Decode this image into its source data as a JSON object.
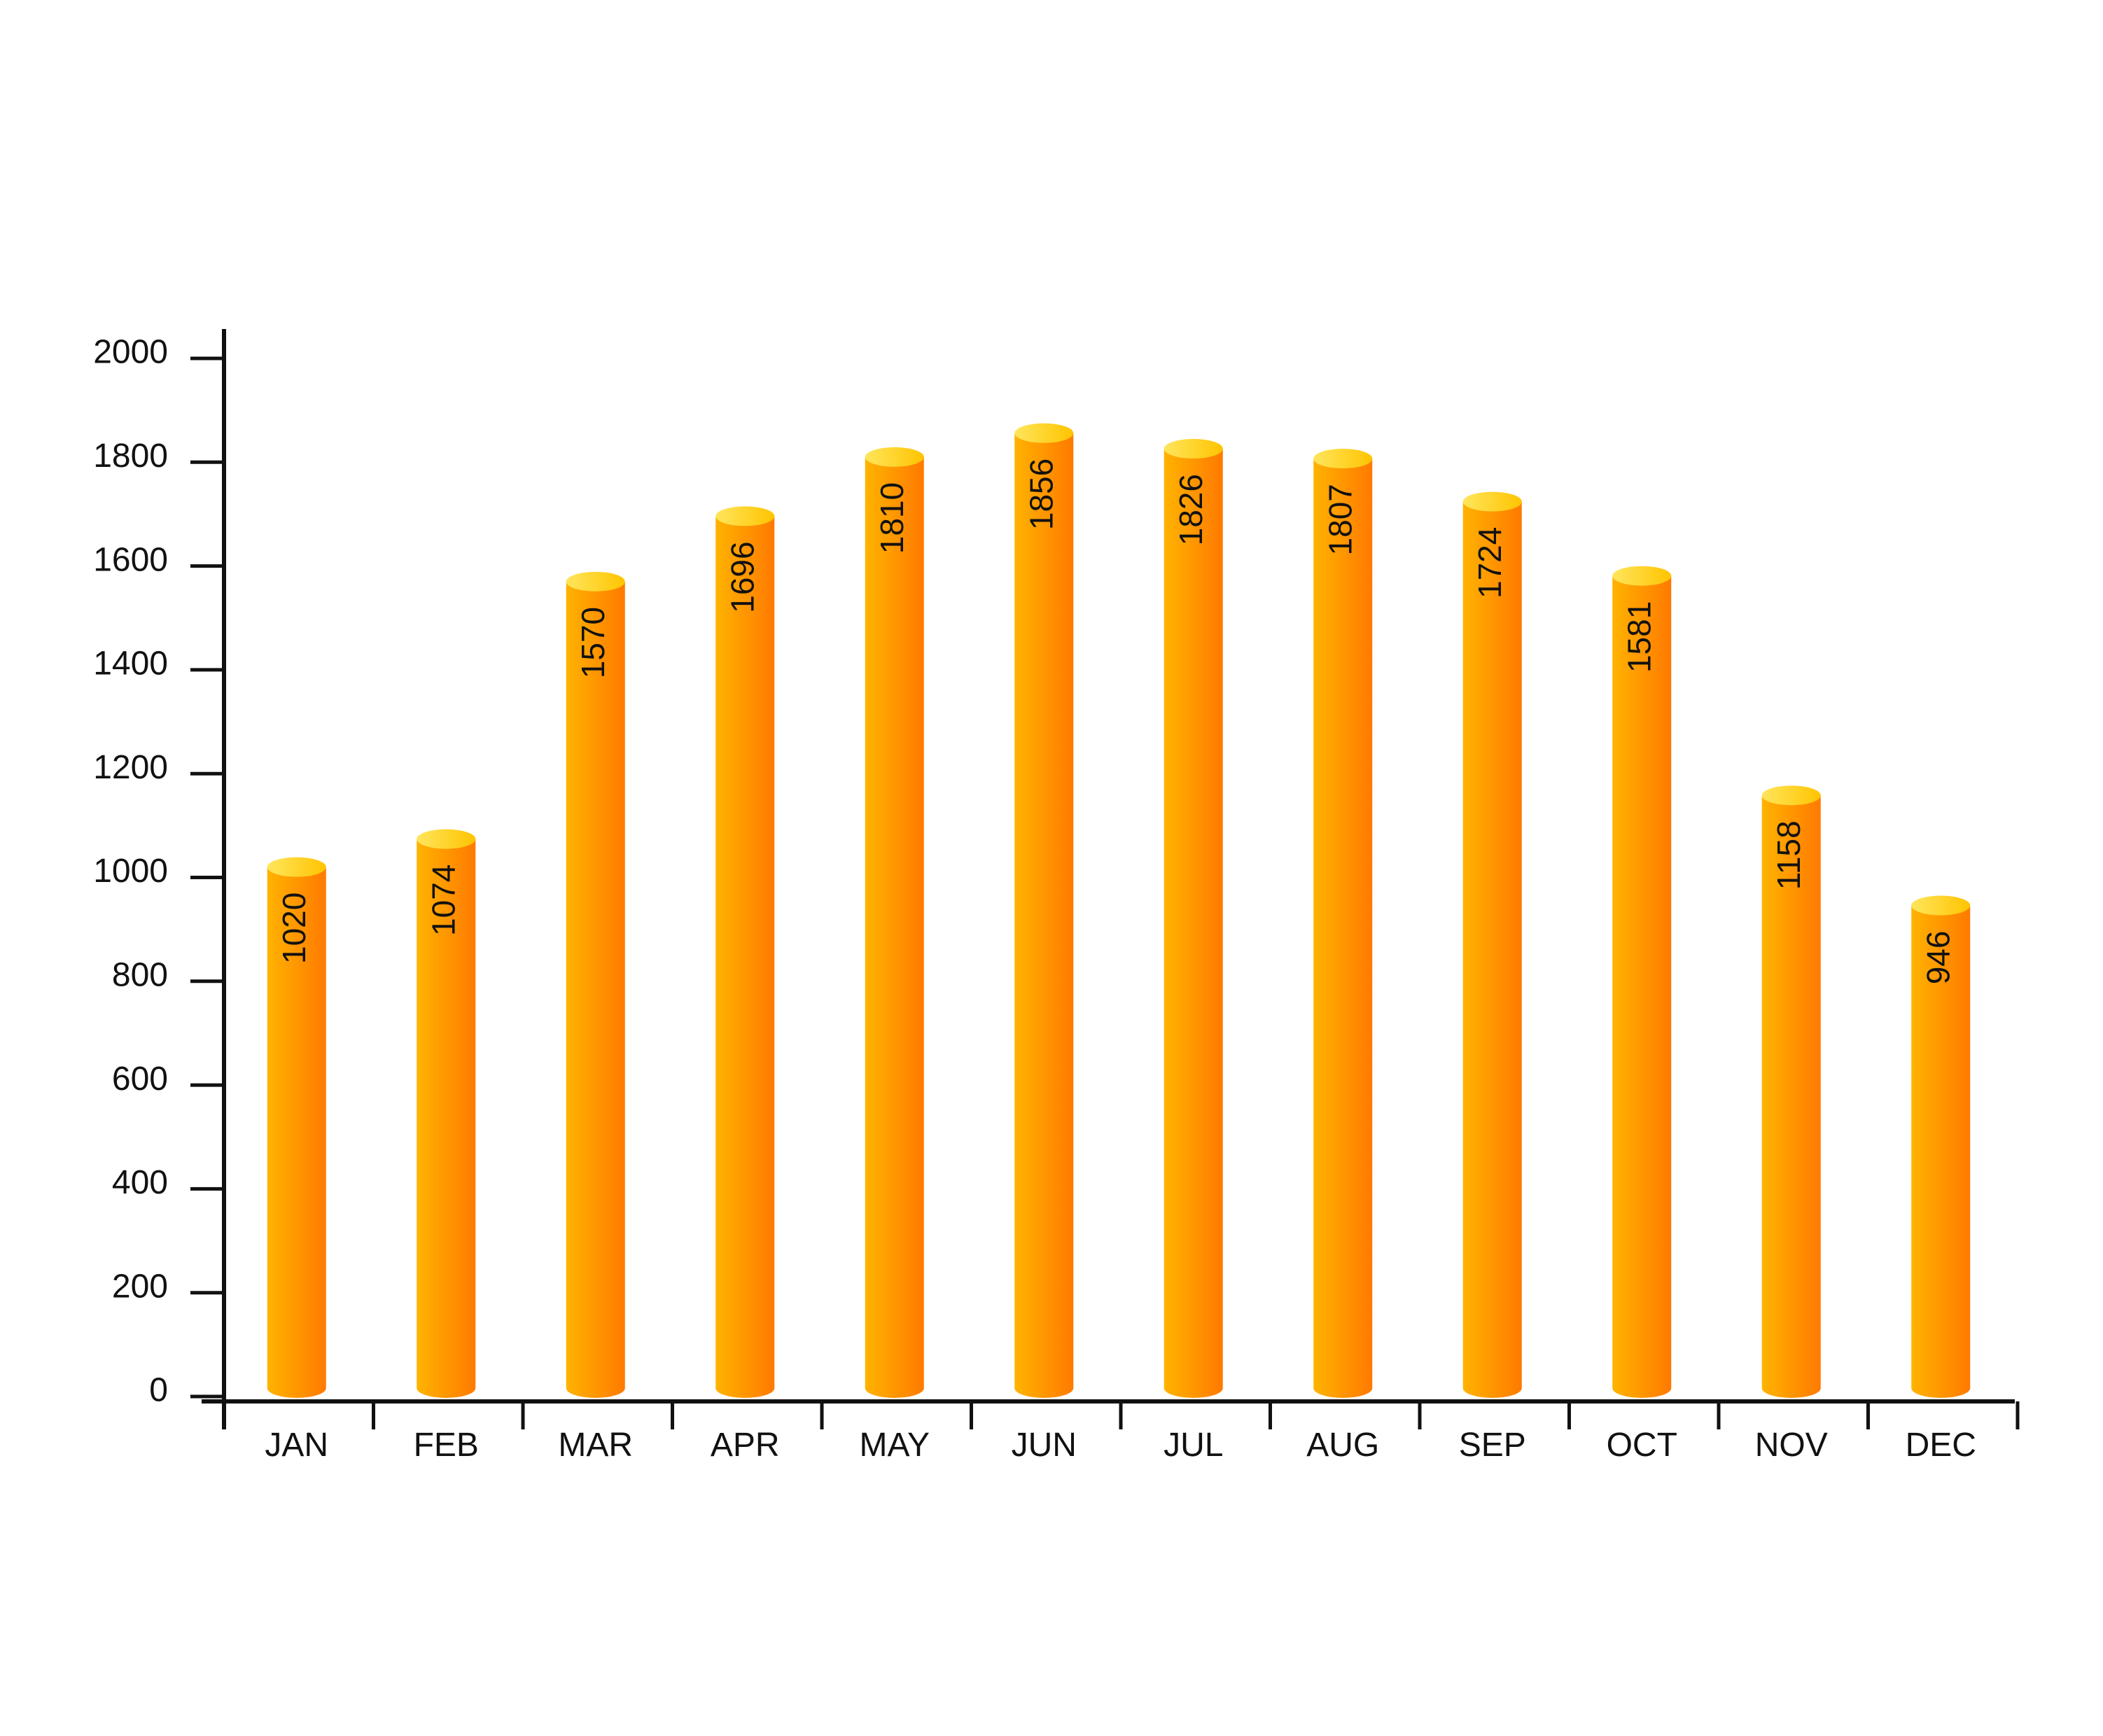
{
  "chart_data": {
    "type": "bar",
    "style": "cylinder",
    "categories": [
      "JAN",
      "FEB",
      "MAR",
      "APR",
      "MAY",
      "JUN",
      "JUL",
      "AUG",
      "SEP",
      "OCT",
      "NOV",
      "DEC"
    ],
    "values": [
      1020,
      1074,
      1570,
      1696,
      1810,
      1856,
      1826,
      1807,
      1724,
      1581,
      1158,
      946
    ],
    "y_ticks": [
      "0",
      "200",
      "400",
      "600",
      "800",
      "1000",
      "1200",
      "1400",
      "1600",
      "1800",
      "2000"
    ],
    "ylim": [
      0,
      2000
    ],
    "title": "",
    "xlabel": "",
    "ylabel": "",
    "grid": false,
    "legend": "none",
    "colors": {
      "bar_left": "#FFB300",
      "bar_right": "#FF7A00",
      "bar_top_light": "#FFE55C",
      "bar_top_dark": "#FFC400",
      "axis": "#111111"
    }
  }
}
